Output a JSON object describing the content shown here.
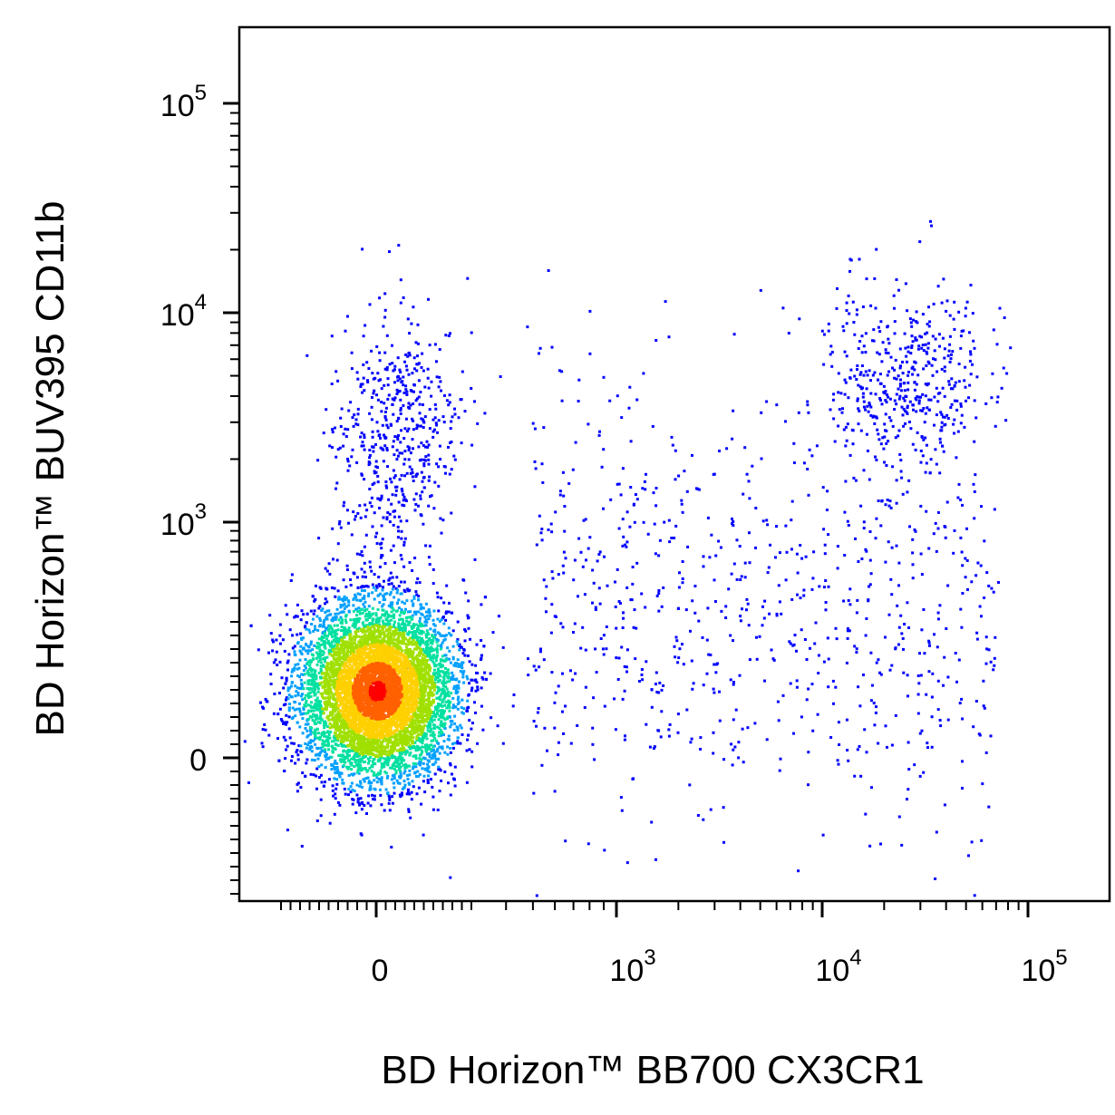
{
  "chart_data": {
    "type": "scatter",
    "subtype": "flow-cytometry-density-dot-plot",
    "xlabel": "BD Horizon™ BB700 CX3CR1",
    "ylabel": "BD Horizon™ BUV395 CD11b",
    "x_scale": "biexponential",
    "y_scale": "biexponential",
    "xlim": [
      -300,
      250000
    ],
    "ylim": [
      -300,
      250000
    ],
    "x_ticks": [
      {
        "base": "0",
        "exp": "",
        "value": 0
      },
      {
        "base": "10",
        "exp": "3",
        "value": 1000
      },
      {
        "base": "10",
        "exp": "4",
        "value": 10000
      },
      {
        "base": "10",
        "exp": "5",
        "value": 100000
      }
    ],
    "y_ticks": [
      {
        "base": "0",
        "exp": "",
        "value": 0
      },
      {
        "base": "10",
        "exp": "3",
        "value": 1000
      },
      {
        "base": "10",
        "exp": "4",
        "value": 10000
      },
      {
        "base": "10",
        "exp": "5",
        "value": 100000
      }
    ],
    "color_scale": [
      "#0000ff",
      "#00a0ff",
      "#00e0a0",
      "#a0e000",
      "#ffd000",
      "#ff6000",
      "#ff0000"
    ],
    "populations": [
      {
        "name": "",
        "x_center": 0,
        "y_center": 150,
        "fraction": 0.8,
        "color_mode": "density"
      },
      {
        "name": "",
        "x_center": 0,
        "y_center": 2500,
        "fraction": 0.06,
        "color_mode": "sparse"
      },
      {
        "name": "",
        "x_center": 25000,
        "y_center": 5000,
        "fraction": 0.05,
        "color_mode": "sparse"
      },
      {
        "name": "",
        "x_center": 3000,
        "y_center": 400,
        "fraction": 0.09,
        "color_mode": "sparse"
      }
    ],
    "grid": false,
    "legend": "none"
  }
}
